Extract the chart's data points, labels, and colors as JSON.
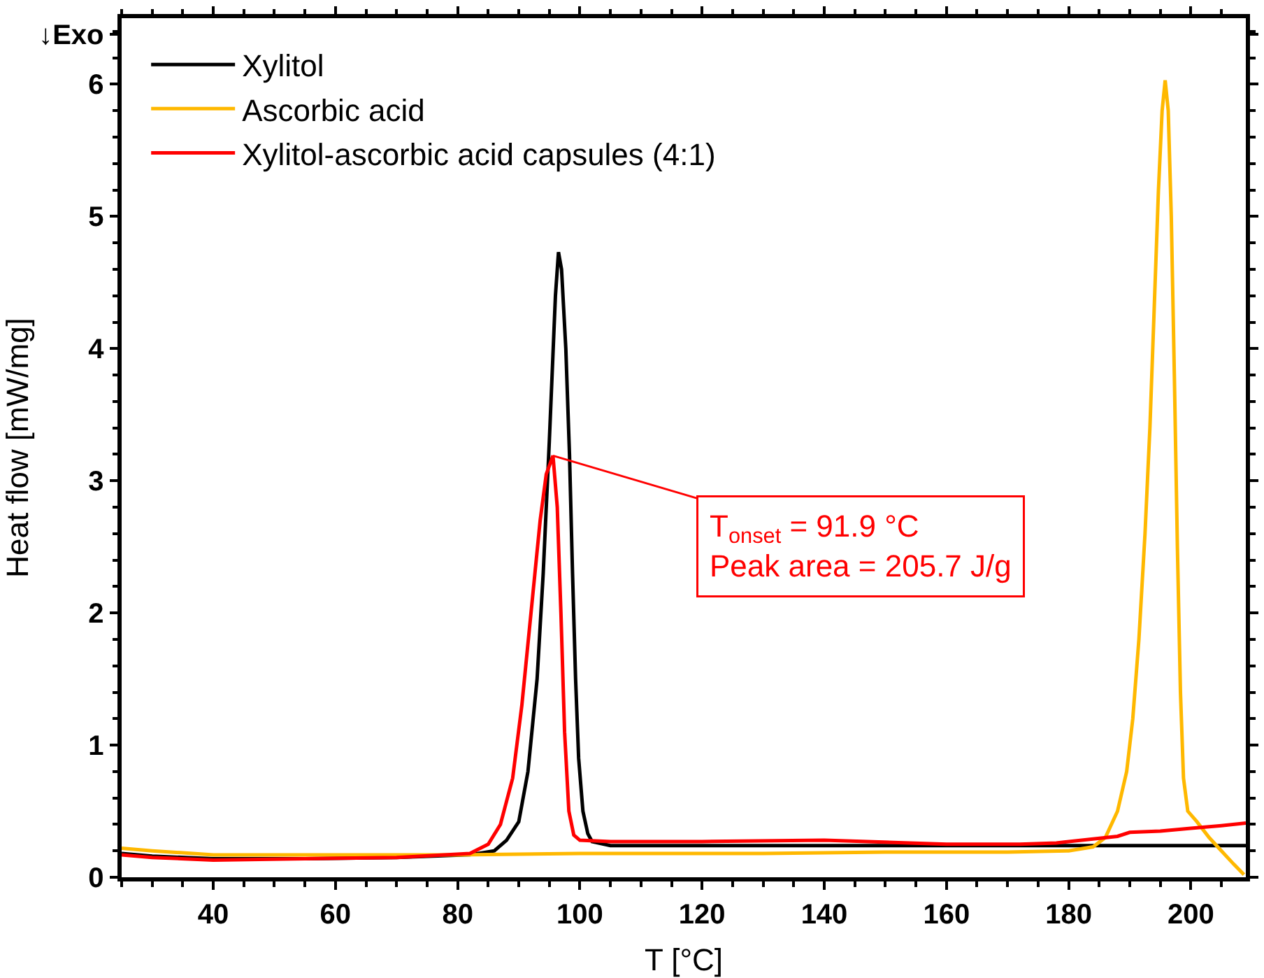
{
  "chart_data": {
    "type": "line",
    "xlabel": "T [°C]",
    "ylabel": "Heat flow [mW/mg]",
    "xlim": [
      25,
      209
    ],
    "ylim": [
      0,
      6.5
    ],
    "xticks": [
      40,
      60,
      80,
      100,
      120,
      140,
      160,
      180,
      200
    ],
    "yticks": [
      0,
      1,
      2,
      3,
      4,
      5,
      6,
      {
        "value": 6.38,
        "label": "↓Exo"
      }
    ],
    "legend": "top left",
    "marker": "none",
    "line_style": "solid",
    "series": [
      {
        "name": "Xylitol",
        "color": "#000000",
        "x": [
          25,
          30,
          40,
          55,
          70,
          82,
          86,
          88,
          90,
          91.5,
          93,
          94,
          95,
          96,
          96.5,
          97,
          97.7,
          98.3,
          98.8,
          99.3,
          99.8,
          100.5,
          101.3,
          102,
          105,
          120,
          140,
          160,
          180,
          200,
          209
        ],
        "values": [
          0.18,
          0.16,
          0.14,
          0.14,
          0.15,
          0.17,
          0.2,
          0.28,
          0.42,
          0.8,
          1.5,
          2.3,
          3.3,
          4.4,
          4.73,
          4.6,
          4.0,
          3.2,
          2.3,
          1.5,
          0.9,
          0.5,
          0.33,
          0.27,
          0.24,
          0.24,
          0.24,
          0.24,
          0.24,
          0.24,
          0.24
        ]
      },
      {
        "name": "Ascorbic acid",
        "color": "#ffb800",
        "x": [
          25,
          30,
          40,
          60,
          80,
          100,
          130,
          150,
          170,
          180,
          184,
          186,
          188,
          189.5,
          190.5,
          191.5,
          192.5,
          193.3,
          194,
          194.7,
          195.3,
          195.8,
          196.3,
          196.8,
          197.3,
          197.8,
          198.3,
          198.8,
          199.5,
          201,
          203,
          205,
          207,
          208.7
        ],
        "values": [
          0.22,
          0.2,
          0.17,
          0.17,
          0.17,
          0.18,
          0.18,
          0.19,
          0.19,
          0.2,
          0.23,
          0.3,
          0.5,
          0.8,
          1.2,
          1.8,
          2.6,
          3.4,
          4.3,
          5.2,
          5.8,
          6.03,
          5.8,
          5.0,
          3.8,
          2.5,
          1.4,
          0.75,
          0.5,
          0.42,
          0.3,
          0.2,
          0.1,
          0.02
        ]
      },
      {
        "name": "Xylitol-ascorbic acid capsules (4:1)",
        "color": "#ff0000",
        "x": [
          25,
          30,
          40,
          55,
          70,
          82,
          85,
          87,
          89,
          90.5,
          92,
          93.5,
          94.5,
          95.6,
          96.3,
          96.9,
          97.5,
          98.2,
          99,
          100,
          105,
          120,
          140,
          160,
          172,
          178,
          184,
          188,
          190,
          195,
          200,
          205,
          209
        ],
        "values": [
          0.17,
          0.15,
          0.13,
          0.14,
          0.15,
          0.18,
          0.25,
          0.4,
          0.75,
          1.3,
          2.0,
          2.7,
          3.05,
          3.19,
          2.8,
          2.0,
          1.1,
          0.5,
          0.32,
          0.28,
          0.27,
          0.27,
          0.28,
          0.25,
          0.25,
          0.26,
          0.29,
          0.31,
          0.34,
          0.35,
          0.37,
          0.39,
          0.41
        ]
      }
    ],
    "annotations": [
      {
        "text": "T$_{onset}$ = 91.9 °C\nPeak area = 205.7 J/g",
        "x": 95.6,
        "y": 3.19
      }
    ]
  }
}
